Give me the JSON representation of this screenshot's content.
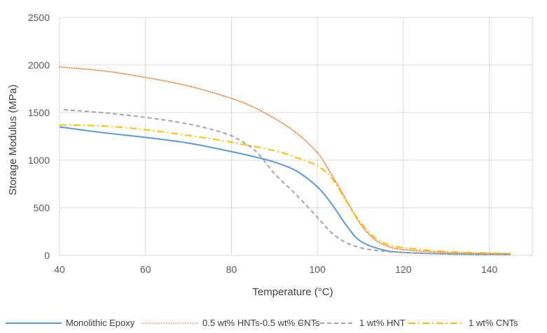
{
  "chart_data": {
    "type": "line",
    "title": "",
    "xlabel": "Temperature (°C)",
    "ylabel": "Storage Modulus (MPa)",
    "xlim": [
      40,
      150
    ],
    "ylim": [
      0,
      2500
    ],
    "x_ticks": [
      "40",
      "60",
      "80",
      "100",
      "120",
      "140"
    ],
    "y_ticks": [
      "0",
      "500",
      "1000",
      "1500",
      "2000",
      "2500"
    ],
    "grid": true,
    "legend_position": "bottom",
    "series": [
      {
        "name": "Monolithic Epoxy",
        "color": "#5b9bd5",
        "dash": "solid",
        "points": [
          [
            40,
            1350
          ],
          [
            50,
            1290
          ],
          [
            60,
            1240
          ],
          [
            70,
            1180
          ],
          [
            80,
            1090
          ],
          [
            85,
            1040
          ],
          [
            90,
            980
          ],
          [
            95,
            890
          ],
          [
            100,
            720
          ],
          [
            103,
            560
          ],
          [
            105,
            430
          ],
          [
            107,
            300
          ],
          [
            110,
            150
          ],
          [
            115,
            60
          ],
          [
            120,
            30
          ],
          [
            130,
            15
          ],
          [
            140,
            10
          ],
          [
            145,
            10
          ]
        ]
      },
      {
        "name": "0.5 wt% HNTs-0.5 wt% CNTs",
        "color": "#ed7d31",
        "dash": "dotted",
        "points": [
          [
            40,
            1980
          ],
          [
            50,
            1940
          ],
          [
            60,
            1870
          ],
          [
            70,
            1780
          ],
          [
            80,
            1650
          ],
          [
            85,
            1560
          ],
          [
            90,
            1440
          ],
          [
            95,
            1290
          ],
          [
            100,
            1080
          ],
          [
            103,
            870
          ],
          [
            105,
            720
          ],
          [
            107,
            560
          ],
          [
            110,
            330
          ],
          [
            113,
            180
          ],
          [
            116,
            100
          ],
          [
            120,
            60
          ],
          [
            130,
            30
          ],
          [
            140,
            20
          ],
          [
            145,
            20
          ]
        ]
      },
      {
        "name": "1 wt% HNT",
        "color": "#a5a5a5",
        "dash": "dashed",
        "points": [
          [
            41,
            1530
          ],
          [
            50,
            1500
          ],
          [
            60,
            1450
          ],
          [
            70,
            1380
          ],
          [
            78,
            1290
          ],
          [
            82,
            1210
          ],
          [
            86,
            1080
          ],
          [
            90,
            860
          ],
          [
            95,
            640
          ],
          [
            100,
            400
          ],
          [
            103,
            250
          ],
          [
            106,
            150
          ],
          [
            110,
            80
          ],
          [
            115,
            45
          ],
          [
            120,
            30
          ],
          [
            130,
            15
          ],
          [
            140,
            10
          ],
          [
            145,
            10
          ]
        ]
      },
      {
        "name": "1 wt% CNTs",
        "color": "#ffc000",
        "dash": "dashdot",
        "points": [
          [
            40,
            1370
          ],
          [
            50,
            1360
          ],
          [
            60,
            1320
          ],
          [
            70,
            1260
          ],
          [
            80,
            1190
          ],
          [
            90,
            1100
          ],
          [
            95,
            1030
          ],
          [
            100,
            940
          ],
          [
            103,
            830
          ],
          [
            105,
            700
          ],
          [
            107,
            550
          ],
          [
            110,
            350
          ],
          [
            113,
            200
          ],
          [
            116,
            120
          ],
          [
            120,
            80
          ],
          [
            130,
            40
          ],
          [
            140,
            25
          ],
          [
            145,
            20
          ]
        ]
      }
    ]
  }
}
